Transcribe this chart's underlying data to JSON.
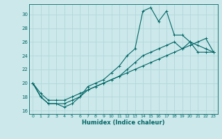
{
  "xlabel": "Humidex (Indice chaleur)",
  "bg_color": "#cce8ea",
  "line_color": "#006666",
  "grid_color": "#b0d8db",
  "xlim": [
    -0.5,
    23.5
  ],
  "ylim": [
    15.5,
    31.5
  ],
  "xticks": [
    0,
    1,
    2,
    3,
    4,
    5,
    6,
    7,
    8,
    9,
    10,
    11,
    12,
    13,
    14,
    15,
    16,
    17,
    18,
    19,
    20,
    21,
    22,
    23
  ],
  "yticks": [
    16,
    18,
    20,
    22,
    24,
    26,
    28,
    30
  ],
  "line1_x": [
    0,
    1,
    2,
    3,
    4,
    5,
    6,
    7,
    8,
    9,
    10,
    11,
    12,
    13,
    14,
    15,
    16,
    17,
    18,
    19,
    20,
    21,
    22,
    23
  ],
  "line1_y": [
    20,
    18,
    17,
    17,
    16.5,
    17,
    18,
    19.5,
    20,
    20.5,
    21.5,
    22.5,
    24,
    25,
    30.5,
    31,
    29,
    30.5,
    27,
    27,
    26,
    24.5,
    24.5,
    24.5
  ],
  "line2_x": [
    0,
    1,
    2,
    3,
    4,
    5,
    6,
    7,
    8,
    9,
    10,
    11,
    12,
    13,
    14,
    15,
    16,
    17,
    18,
    19,
    20,
    21,
    22,
    23
  ],
  "line2_y": [
    20,
    18,
    17,
    17,
    17,
    17.5,
    18,
    19,
    19.5,
    20,
    20.5,
    21,
    22,
    23,
    24,
    24.5,
    25,
    25.5,
    26,
    25,
    26,
    25.5,
    25,
    24.5
  ],
  "line3_x": [
    0,
    1,
    2,
    3,
    4,
    5,
    6,
    7,
    8,
    9,
    10,
    11,
    12,
    13,
    14,
    15,
    16,
    17,
    18,
    19,
    20,
    21,
    22,
    23
  ],
  "line3_y": [
    20,
    18.5,
    17.5,
    17.5,
    17.5,
    18,
    18.5,
    19,
    19.5,
    20,
    20.5,
    21,
    21.5,
    22,
    22.5,
    23,
    23.5,
    24,
    24.5,
    25,
    25.5,
    26,
    26.5,
    24.5
  ]
}
